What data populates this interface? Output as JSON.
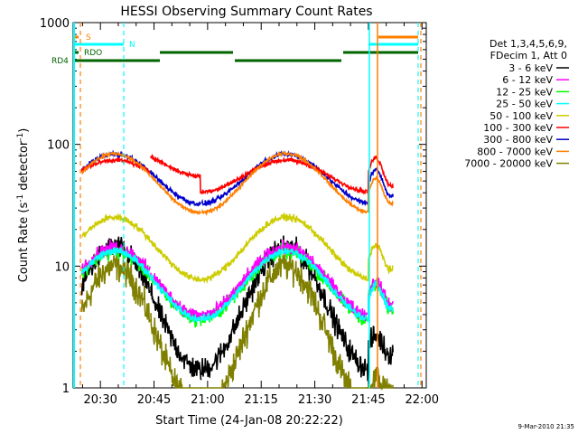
{
  "chart_data": {
    "type": "line",
    "title": "HESSI Observing Summary Count Rates",
    "xlabel": "Start Time (24-Jan-08 20:22:22)",
    "ylabel_main": "Count Rate (s",
    "ylabel_sup1": "-1",
    "ylabel_mid": " detector",
    "ylabel_sup2": "-1",
    "ylabel_end": ")",
    "footer": "9-Mar-2010 21:35",
    "x_range_min": [
      20.37,
      22.02
    ],
    "y_range": [
      1,
      1000
    ],
    "y_scale": "log",
    "x_ticks": [
      {
        "min": 1230,
        "label": "20:30"
      },
      {
        "min": 1245,
        "label": "20:45"
      },
      {
        "min": 1260,
        "label": "21:00"
      },
      {
        "min": 1275,
        "label": "21:15"
      },
      {
        "min": 1290,
        "label": "21:30"
      },
      {
        "min": 1305,
        "label": "21:45"
      },
      {
        "min": 1320,
        "label": "22:00"
      }
    ],
    "y_ticks": [
      {
        "v": 1,
        "label": "1"
      },
      {
        "v": 10,
        "label": "10"
      },
      {
        "v": 100,
        "label": "100"
      },
      {
        "v": 1000,
        "label": "1000"
      }
    ],
    "legend": {
      "header1": "Det 1,3,4,5,6,9,",
      "header2": "FDecim 1, Att 0",
      "placement": "right"
    },
    "flags": [
      {
        "label": "S",
        "color": "#ff7f00"
      },
      {
        "label": "N",
        "color": "#00ffff"
      },
      {
        "label": "RDO",
        "color": "#006400"
      },
      {
        "label": "RD4",
        "color": "#006400"
      }
    ],
    "series": [
      {
        "name": "3 - 6 keV",
        "color": "#000000"
      },
      {
        "name": "6 - 12 keV",
        "color": "#ff00ff"
      },
      {
        "name": "12 - 25 keV",
        "color": "#00ff00"
      },
      {
        "name": "25 - 50 keV",
        "color": "#00ffff"
      },
      {
        "name": "50 - 100 keV",
        "color": "#cccc00"
      },
      {
        "name": "100 - 300 keV",
        "color": "#ff0000"
      },
      {
        "name": "300 - 800 keV",
        "color": "#0000cc"
      },
      {
        "name": "800 - 7000 keV",
        "color": "#ff7f00"
      },
      {
        "name": "7000 - 20000 keV",
        "color": "#808000"
      }
    ]
  }
}
